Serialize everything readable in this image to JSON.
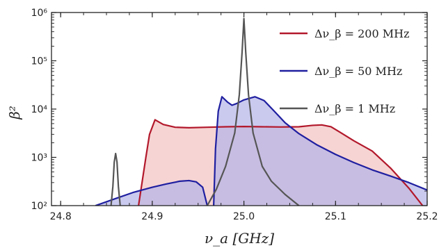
{
  "chart_data": {
    "type": "area",
    "xlabel": "ν_a [GHz]",
    "ylabel": "β²",
    "xlim": [
      24.79,
      25.2
    ],
    "ylim": [
      100,
      1000000
    ],
    "yscale": "log",
    "x_ticks": [
      24.8,
      24.9,
      25.0,
      25.1,
      25.2
    ],
    "x_tick_labels": [
      "24.8",
      "24.9",
      "25.0",
      "25.1",
      "25.2"
    ],
    "y_ticks": [
      100,
      1000,
      10000,
      100000,
      1000000
    ],
    "y_tick_labels": [
      "10²",
      "10³",
      "10⁴",
      "10⁵",
      "10⁶"
    ],
    "grid": false,
    "legend_position": "top-right",
    "series": [
      {
        "name": "Δν_β = 200 MHz",
        "color": "#b2182b",
        "fill": "#f3c6c4",
        "fill_opacity": 0.75,
        "points": [
          [
            24.885,
            100
          ],
          [
            24.893,
            1000
          ],
          [
            24.897,
            3000
          ],
          [
            24.903,
            6000
          ],
          [
            24.912,
            4800
          ],
          [
            24.925,
            4200
          ],
          [
            24.94,
            4100
          ],
          [
            24.96,
            4200
          ],
          [
            24.98,
            4300
          ],
          [
            25.0,
            4350
          ],
          [
            25.02,
            4300
          ],
          [
            25.04,
            4250
          ],
          [
            25.06,
            4300
          ],
          [
            25.075,
            4600
          ],
          [
            25.085,
            4700
          ],
          [
            25.095,
            4300
          ],
          [
            25.105,
            3300
          ],
          [
            25.12,
            2200
          ],
          [
            25.14,
            1350
          ],
          [
            25.16,
            600
          ],
          [
            25.18,
            230
          ],
          [
            25.195,
            100
          ]
        ]
      },
      {
        "name": "Δν_β = 50 MHz",
        "color": "#1f1fa0",
        "fill": "#b4b4e8",
        "fill_opacity": 0.7,
        "segments": [
          [
            [
              24.838,
              100
            ],
            [
              24.86,
              140
            ],
            [
              24.88,
              190
            ],
            [
              24.9,
              240
            ],
            [
              24.915,
              280
            ],
            [
              24.93,
              320
            ],
            [
              24.94,
              330
            ],
            [
              24.948,
              310
            ],
            [
              24.955,
              240
            ],
            [
              24.96,
              100
            ]
          ],
          [
            [
              24.967,
              100
            ],
            [
              24.969,
              1500
            ],
            [
              24.972,
              9000
            ],
            [
              24.976,
              18000
            ],
            [
              24.982,
              14000
            ],
            [
              24.987,
              12000
            ],
            [
              24.992,
              13000
            ],
            [
              25.0,
              15500
            ],
            [
              25.012,
              18000
            ],
            [
              25.022,
              15000
            ],
            [
              25.032,
              9500
            ],
            [
              25.045,
              5200
            ],
            [
              25.06,
              3100
            ],
            [
              25.08,
              1800
            ],
            [
              25.1,
              1150
            ],
            [
              25.12,
              780
            ],
            [
              25.14,
              550
            ],
            [
              25.16,
              410
            ],
            [
              25.18,
              300
            ],
            [
              25.2,
              210
            ]
          ]
        ]
      },
      {
        "name": "Δν_β = 1 MHz",
        "color": "#555555",
        "fill": "#555555",
        "fill_opacity": 0.0,
        "segments": [
          [
            [
              24.855,
              100
            ],
            [
              24.857,
              250
            ],
            [
              24.8585,
              800
            ],
            [
              24.86,
              1200
            ],
            [
              24.8615,
              800
            ],
            [
              24.863,
              250
            ],
            [
              24.865,
              100
            ]
          ],
          [
            [
              24.96,
              100
            ],
            [
              24.97,
              220
            ],
            [
              24.98,
              650
            ],
            [
              24.99,
              3200
            ],
            [
              24.995,
              20000
            ],
            [
              24.998,
              150000
            ],
            [
              25.0,
              750000
            ],
            [
              25.002,
              150000
            ],
            [
              25.005,
              20000
            ],
            [
              25.01,
              3200
            ],
            [
              25.02,
              650
            ],
            [
              25.03,
              320
            ],
            [
              25.045,
              170
            ],
            [
              25.06,
              100
            ]
          ]
        ]
      }
    ]
  }
}
